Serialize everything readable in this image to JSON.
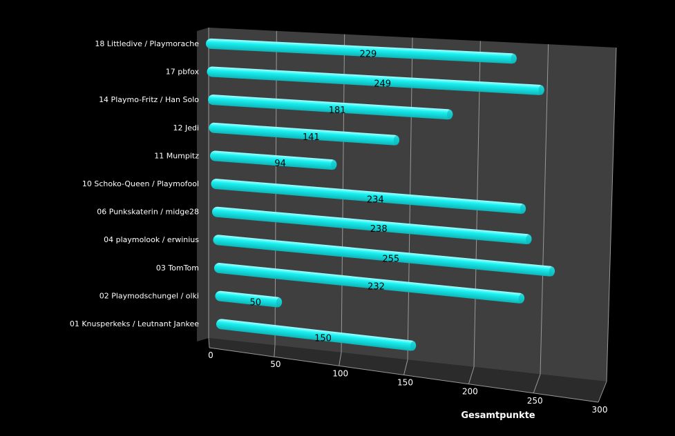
{
  "chart_data": {
    "type": "bar",
    "orientation": "horizontal",
    "style": "3d-cylinder",
    "categories": [
      "01 Knusperkeks / Leutnant Jankee",
      "02 Playmodschungel / olki",
      "03 TomTom",
      "04 playmolook / erwinius",
      "06 Punkskaterin / midge28",
      "10 Schoko-Queen / Playmofool",
      "11 Mumpitz",
      "12 Jedi",
      "14 Playmo-Fritz / Han Solo",
      "17 pbfox",
      "18 Littledive / Playmorache"
    ],
    "values": [
      150,
      50,
      232,
      255,
      238,
      234,
      94,
      141,
      181,
      249,
      229
    ],
    "value_labels": [
      "150",
      "50",
      "232",
      "255",
      "238",
      "234",
      "94",
      "141",
      "181",
      "249",
      "229"
    ],
    "xlabel": "Gesamtpunkte",
    "xlim": [
      0,
      300
    ],
    "xticks": [
      "0",
      "50",
      "100",
      "150",
      "200",
      "250",
      "300"
    ],
    "grid": true,
    "legend": "none",
    "colors": {
      "background": "#000000",
      "wall": "#3f3f3f",
      "floor": "#2b2b2b",
      "side_wall": "#353535",
      "grid": "#9a9a9a",
      "bar": "#19f0f0",
      "bar_shade": "#0fb5b8",
      "bar_highlight": "#a6ffff",
      "text": "#ffffff",
      "label_text": "#000000"
    }
  }
}
